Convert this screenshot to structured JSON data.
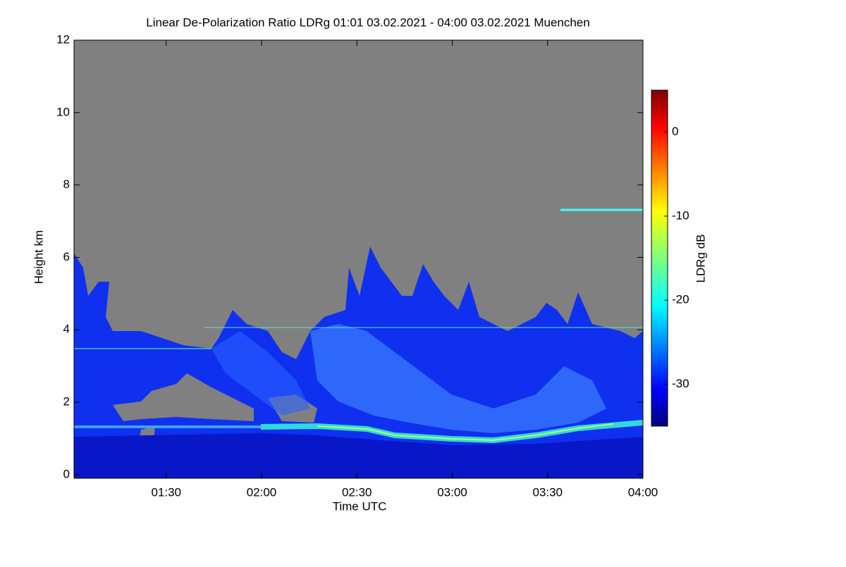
{
  "chart_data": {
    "type": "heatmap",
    "title": "Linear De-Polarization Ratio LDRg   01:01 03.02.2021 - 04:00 03.02.2021 Muenchen",
    "x_label": "Time UTC",
    "y_label": "Height km",
    "colorbar_label": "LDRg dB",
    "colormap": "jet",
    "xlim": [
      61,
      240
    ],
    "xticks": [
      {
        "value": 90,
        "label": "01:30"
      },
      {
        "value": 120,
        "label": "02:00"
      },
      {
        "value": 150,
        "label": "02:30"
      },
      {
        "value": 180,
        "label": "03:00"
      },
      {
        "value": 210,
        "label": "03:30"
      },
      {
        "value": 240,
        "label": "04:00"
      }
    ],
    "ylim": [
      -0.1,
      12
    ],
    "yticks": [
      0,
      2,
      4,
      6,
      8,
      10,
      12
    ],
    "clim": [
      -35,
      5
    ],
    "cticks": [
      0,
      -10,
      -20,
      -30
    ]
  }
}
